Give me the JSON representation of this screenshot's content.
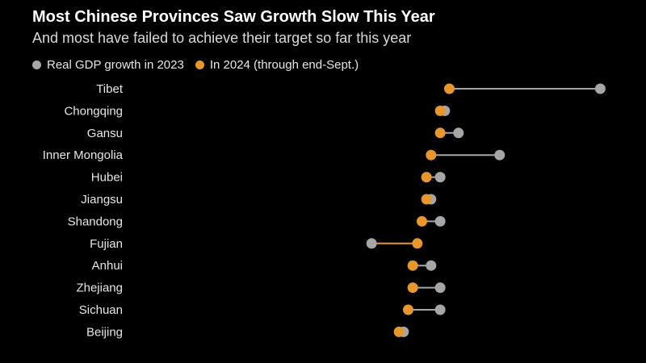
{
  "chart_data": {
    "type": "dumbbell",
    "title": "Most Chinese Provinces Saw Growth Slow This Year",
    "subtitle": "And most have failed to achieve their target so far this year",
    "legend": {
      "placement": "top-left",
      "entries": [
        {
          "name": "Real GDP growth in 2023",
          "color": "#a6a6a6"
        },
        {
          "name": "In 2024 (through end-Sept.)",
          "color": "#e8962e"
        }
      ]
    },
    "grid": false,
    "xlim": [
      -0.8,
      10.5
    ],
    "categories": [
      "Tibet",
      "Chongqing",
      "Gansu",
      "Inner Mongolia",
      "Hubei",
      "Jiangsu",
      "Shandong",
      "Fujian",
      "Anhui",
      "Zhejiang",
      "Sichuan",
      "Beijing"
    ],
    "series": [
      {
        "name": "Real GDP growth in 2023",
        "values": [
          9.5,
          6.1,
          6.4,
          7.3,
          6.0,
          5.8,
          6.0,
          4.5,
          5.8,
          6.0,
          6.0,
          5.2
        ]
      },
      {
        "name": "In 2024 (through end-Sept.)",
        "values": [
          6.2,
          6.0,
          6.0,
          5.8,
          5.7,
          5.7,
          5.6,
          5.5,
          5.4,
          5.4,
          5.3,
          5.1
        ]
      }
    ]
  }
}
